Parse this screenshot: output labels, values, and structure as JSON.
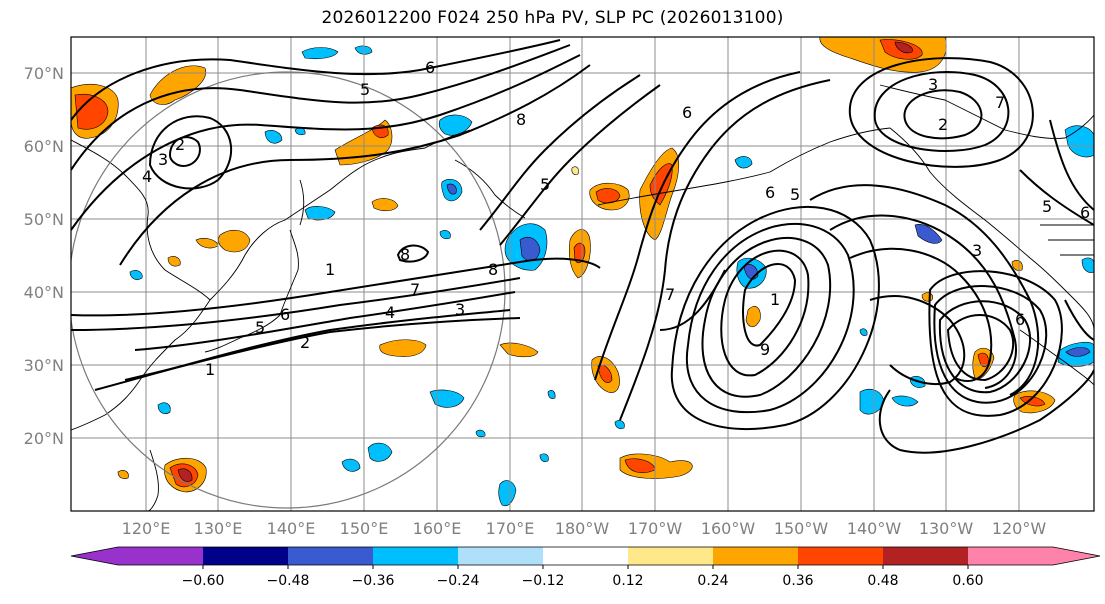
{
  "title": "2026012200 F024 250 hPa PV, SLP PC (2026013100)",
  "lat_labels": [
    "70°N",
    "60°N",
    "50°N",
    "40°N",
    "30°N",
    "20°N"
  ],
  "lon_labels": [
    "120°E",
    "130°E",
    "140°E",
    "150°E",
    "160°E",
    "170°E",
    "180°W",
    "170°W",
    "160°W",
    "150°W",
    "140°W",
    "130°W",
    "120°W"
  ],
  "colorbar": {
    "tick_labels": [
      "−0.60",
      "−0.48",
      "−0.36",
      "−0.24",
      "−0.12",
      "0.12",
      "0.24",
      "0.36",
      "0.48",
      "0.60"
    ],
    "colors": [
      "#9932cc",
      "#00008b",
      "#3a5bd0",
      "#00bfff",
      "#aee0fa",
      "#ffffff",
      "#ffe88a",
      "#ffa500",
      "#ff4500",
      "#b22222",
      "#ff82ab"
    ]
  },
  "contour_labels": [
    "5",
    "6",
    "2",
    "3",
    "4",
    "8",
    "5",
    "8",
    "1",
    "8",
    "7",
    "4",
    "3",
    "6",
    "5",
    "2",
    "1",
    "7",
    "6",
    "5",
    "1",
    "6",
    "9",
    "3",
    "2",
    "7",
    "5",
    "6",
    "3",
    "6"
  ]
}
